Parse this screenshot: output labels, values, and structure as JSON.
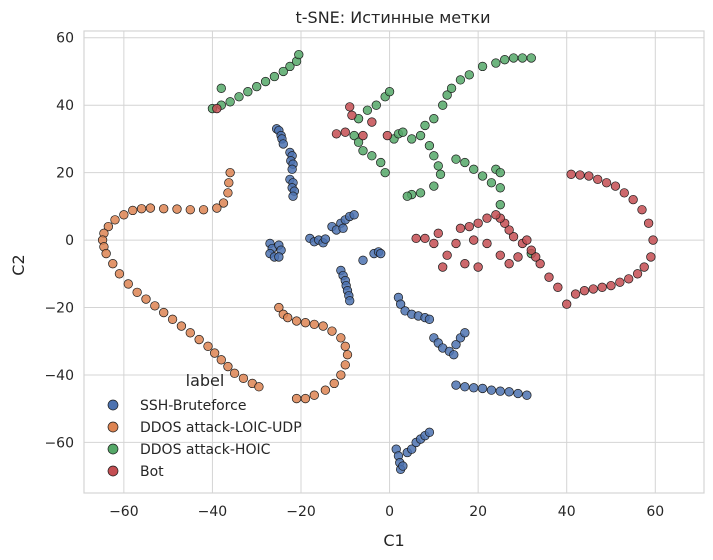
{
  "chart_data": {
    "type": "scatter",
    "title": "t-SNE: Истинные метки",
    "xlabel": "C1",
    "ylabel": "C2",
    "xlim": [
      -69,
      71
    ],
    "ylim": [
      -75,
      62
    ],
    "xticks": [
      -60,
      -40,
      -20,
      0,
      20,
      40,
      60
    ],
    "yticks": [
      -60,
      -40,
      -20,
      0,
      20,
      40,
      60
    ],
    "xtick_labels": [
      "−60",
      "−40",
      "−20",
      "0",
      "20",
      "40",
      "60"
    ],
    "ytick_labels": [
      "−60",
      "−40",
      "−20",
      "0",
      "20",
      "40",
      "60"
    ],
    "grid": true,
    "legend": {
      "title": "label",
      "placement": "lower-left"
    },
    "series": [
      {
        "name": "SSH-Bruteforce",
        "color": "#4c72b0",
        "points": [
          [
            -25.5,
            33
          ],
          [
            -25,
            32.5
          ],
          [
            -24.5,
            31
          ],
          [
            -24.3,
            30
          ],
          [
            -24,
            28.5
          ],
          [
            -22.5,
            26
          ],
          [
            -22,
            25
          ],
          [
            -22.3,
            23.5
          ],
          [
            -21.8,
            22.5
          ],
          [
            -22,
            21
          ],
          [
            -22.5,
            18
          ],
          [
            -21.8,
            17
          ],
          [
            -22,
            15.5
          ],
          [
            -21.5,
            14.5
          ],
          [
            -21.8,
            13
          ],
          [
            -27,
            -1
          ],
          [
            -26.5,
            -2.5
          ],
          [
            -27,
            -4
          ],
          [
            -26,
            -5
          ],
          [
            -25,
            -1.5
          ],
          [
            -24.5,
            -3
          ],
          [
            -25,
            -5
          ],
          [
            -18,
            0.5
          ],
          [
            -17,
            -0.5
          ],
          [
            -16,
            0
          ],
          [
            -15,
            -0.8
          ],
          [
            -14.5,
            0.3
          ],
          [
            -13,
            4
          ],
          [
            -12,
            3
          ],
          [
            -11,
            5
          ],
          [
            -10,
            6
          ],
          [
            -9,
            7
          ],
          [
            -8,
            7.5
          ],
          [
            -10.5,
            3.5
          ],
          [
            -11,
            -9
          ],
          [
            -10.5,
            -10.5
          ],
          [
            -10,
            -12
          ],
          [
            -9.8,
            -13.5
          ],
          [
            -9.5,
            -15
          ],
          [
            -9.2,
            -16.5
          ],
          [
            -9,
            -18
          ],
          [
            -6,
            -6
          ],
          [
            -3.5,
            -4
          ],
          [
            -2.5,
            -3.5
          ],
          [
            -2,
            -4
          ],
          [
            2,
            -17
          ],
          [
            2.5,
            -19
          ],
          [
            3.5,
            -21
          ],
          [
            5,
            -22
          ],
          [
            6.5,
            -22.5
          ],
          [
            8,
            -23
          ],
          [
            9,
            -23.5
          ],
          [
            10,
            -29
          ],
          [
            11,
            -30.5
          ],
          [
            12,
            -32
          ],
          [
            13.5,
            -33
          ],
          [
            14.5,
            -34
          ],
          [
            15,
            -31
          ],
          [
            16,
            -29
          ],
          [
            17,
            -27.5
          ],
          [
            15,
            -43
          ],
          [
            17,
            -43.5
          ],
          [
            19,
            -43.8
          ],
          [
            21,
            -44
          ],
          [
            23,
            -44.5
          ],
          [
            25,
            -44.8
          ],
          [
            27,
            -45
          ],
          [
            29,
            -45.5
          ],
          [
            31,
            -46
          ],
          [
            1.5,
            -62
          ],
          [
            2,
            -64
          ],
          [
            2.3,
            -66
          ],
          [
            2.5,
            -68
          ],
          [
            3,
            -67
          ],
          [
            4,
            -63
          ],
          [
            5,
            -62
          ],
          [
            6,
            -60
          ],
          [
            7,
            -59
          ],
          [
            8,
            -58
          ],
          [
            9,
            -57
          ]
        ]
      },
      {
        "name": "DDOS attack-LOIC-UDP",
        "color": "#dd8452",
        "points": [
          [
            -36,
            20
          ],
          [
            -36.3,
            17
          ],
          [
            -36.5,
            14
          ],
          [
            -37.5,
            11
          ],
          [
            -39,
            9.5
          ],
          [
            -42,
            9
          ],
          [
            -45,
            9
          ],
          [
            -48,
            9.2
          ],
          [
            -51,
            9.3
          ],
          [
            -54,
            9.5
          ],
          [
            -56,
            9.3
          ],
          [
            -58,
            8.8
          ],
          [
            -60,
            7.5
          ],
          [
            -62,
            6
          ],
          [
            -63.5,
            4
          ],
          [
            -64.5,
            2
          ],
          [
            -64.8,
            0
          ],
          [
            -64.5,
            -2
          ],
          [
            -64,
            -4
          ],
          [
            -62.5,
            -7
          ],
          [
            -61,
            -10
          ],
          [
            -59,
            -13
          ],
          [
            -57,
            -15.5
          ],
          [
            -55,
            -17.5
          ],
          [
            -53,
            -19.5
          ],
          [
            -51,
            -21.5
          ],
          [
            -49,
            -23.5
          ],
          [
            -47,
            -25.5
          ],
          [
            -45,
            -27.5
          ],
          [
            -43,
            -29.5
          ],
          [
            -41,
            -31.5
          ],
          [
            -39.5,
            -33.5
          ],
          [
            -38,
            -35.5
          ],
          [
            -36.5,
            -37.5
          ],
          [
            -35,
            -39.5
          ],
          [
            -33,
            -41
          ],
          [
            -31,
            -42.5
          ],
          [
            -29.5,
            -43.5
          ],
          [
            -25,
            -20
          ],
          [
            -24,
            -22
          ],
          [
            -23,
            -23
          ],
          [
            -21,
            -24
          ],
          [
            -19,
            -24.5
          ],
          [
            -17,
            -25
          ],
          [
            -15,
            -25.5
          ],
          [
            -13,
            -27
          ],
          [
            -11,
            -29
          ],
          [
            -10,
            -31.5
          ],
          [
            -9.5,
            -34
          ],
          [
            -10,
            -37
          ],
          [
            -11,
            -40
          ],
          [
            -12.5,
            -42.5
          ],
          [
            -14.5,
            -44.5
          ],
          [
            -17,
            -46
          ],
          [
            -19,
            -47
          ],
          [
            -21,
            -47
          ]
        ]
      },
      {
        "name": "DDOS attack-HOIC",
        "color": "#55a868",
        "points": [
          [
            -38,
            45
          ],
          [
            -40,
            39
          ],
          [
            -38,
            40
          ],
          [
            -36,
            41
          ],
          [
            -34,
            42.5
          ],
          [
            -32,
            44
          ],
          [
            -30,
            45.5
          ],
          [
            -28,
            47
          ],
          [
            -26,
            48.5
          ],
          [
            -24,
            50
          ],
          [
            -22.5,
            51.5
          ],
          [
            -21,
            53
          ],
          [
            -20.5,
            55
          ],
          [
            -7,
            36
          ],
          [
            -5,
            38.5
          ],
          [
            -3,
            40
          ],
          [
            -1,
            42.5
          ],
          [
            0,
            44
          ],
          [
            -8,
            31
          ],
          [
            -7,
            29
          ],
          [
            -6,
            26.5
          ],
          [
            -4,
            25
          ],
          [
            -2,
            23
          ],
          [
            -1,
            20
          ],
          [
            1,
            30
          ],
          [
            2,
            31.5
          ],
          [
            3,
            32
          ],
          [
            5,
            30
          ],
          [
            7,
            31
          ],
          [
            8,
            34
          ],
          [
            10,
            36
          ],
          [
            9,
            28
          ],
          [
            10,
            25
          ],
          [
            11,
            22
          ],
          [
            11.5,
            19.5
          ],
          [
            12,
            40
          ],
          [
            13,
            43
          ],
          [
            14,
            45
          ],
          [
            16,
            47.5
          ],
          [
            18,
            49
          ],
          [
            21,
            51.5
          ],
          [
            24,
            52.5
          ],
          [
            26,
            53.5
          ],
          [
            28,
            54
          ],
          [
            30,
            54
          ],
          [
            32,
            54
          ],
          [
            15,
            24
          ],
          [
            17,
            23
          ],
          [
            19,
            21
          ],
          [
            21,
            19
          ],
          [
            23,
            17
          ],
          [
            25,
            15.5
          ],
          [
            10,
            16
          ],
          [
            7,
            14
          ],
          [
            5,
            13.5
          ],
          [
            4,
            13
          ],
          [
            24,
            21
          ],
          [
            25,
            20
          ],
          [
            25,
            10.5
          ],
          [
            32,
            -4
          ]
        ]
      },
      {
        "name": "Bot",
        "color": "#c44e52",
        "points": [
          [
            -39,
            39
          ],
          [
            -9,
            39.5
          ],
          [
            -8.5,
            37
          ],
          [
            -12,
            31.5
          ],
          [
            -10,
            32
          ],
          [
            -4,
            35
          ],
          [
            -6,
            31
          ],
          [
            -0.5,
            31
          ],
          [
            41,
            19.5
          ],
          [
            43,
            19.3
          ],
          [
            45,
            19
          ],
          [
            47,
            18
          ],
          [
            49,
            17
          ],
          [
            51,
            16
          ],
          [
            53,
            14
          ],
          [
            55,
            12
          ],
          [
            57,
            9
          ],
          [
            58.5,
            5
          ],
          [
            59.5,
            0
          ],
          [
            59,
            -5
          ],
          [
            57.5,
            -8
          ],
          [
            56,
            -10
          ],
          [
            54,
            -11.5
          ],
          [
            52,
            -12.5
          ],
          [
            50,
            -13.5
          ],
          [
            48,
            -14
          ],
          [
            46,
            -14.5
          ],
          [
            44,
            -15
          ],
          [
            42,
            -16
          ],
          [
            40,
            -19
          ],
          [
            38,
            -14
          ],
          [
            36,
            -11
          ],
          [
            34,
            -7
          ],
          [
            33,
            -5
          ],
          [
            32,
            -3
          ],
          [
            30,
            -1
          ],
          [
            28,
            1
          ],
          [
            27,
            3
          ],
          [
            26,
            5
          ],
          [
            25,
            6.5
          ],
          [
            24,
            7.5
          ],
          [
            22,
            6.5
          ],
          [
            20,
            5
          ],
          [
            18,
            4
          ],
          [
            16,
            3.5
          ],
          [
            13,
            -4.5
          ],
          [
            12,
            -8
          ],
          [
            10,
            -1
          ],
          [
            8,
            0.5
          ],
          [
            6,
            0.5
          ],
          [
            22,
            -1
          ],
          [
            25,
            -4.5
          ],
          [
            27,
            -7
          ],
          [
            29,
            -5
          ],
          [
            31,
            0
          ],
          [
            20,
            -8
          ],
          [
            17,
            -7
          ],
          [
            15,
            -1
          ],
          [
            11,
            2
          ],
          [
            19,
            0
          ]
        ]
      }
    ]
  }
}
